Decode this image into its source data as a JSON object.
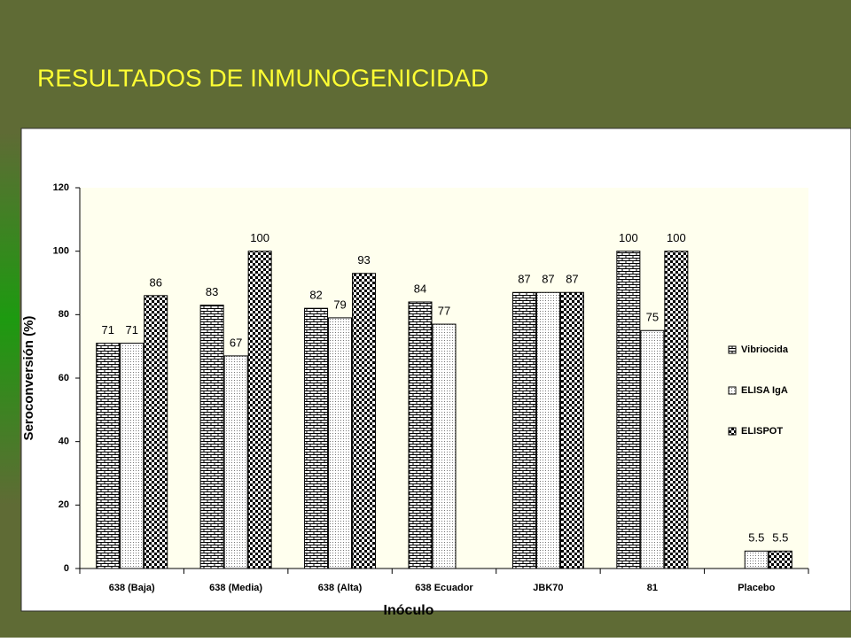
{
  "slide_title": "RESULTADOS DE INMUNOGENICIDAD",
  "chart_data": {
    "type": "bar",
    "categories": [
      "638 (Baja)",
      "638 (Media)",
      "638 (Alta)",
      "638 Ecuador",
      "JBK70",
      "81",
      "Placebo"
    ],
    "series": [
      {
        "name": "Vibriocida",
        "color": "#000000",
        "values": [
          71,
          83,
          82,
          84,
          87,
          100,
          null
        ]
      },
      {
        "name": "ELISA IgA",
        "color": "#000000",
        "values": [
          71,
          67,
          79,
          77,
          87,
          75,
          5.5
        ]
      },
      {
        "name": "ELISPOT",
        "color": "#000000",
        "values": [
          86,
          100,
          93,
          null,
          87,
          100,
          5.5
        ]
      }
    ],
    "ylim": [
      0,
      120
    ],
    "yticks": [
      0,
      20,
      40,
      60,
      80,
      100,
      120
    ],
    "y_label": "Seroconversión (%)",
    "x_label": "Inóculo",
    "legend": "right",
    "grid": false,
    "plot_background": "#ffffee"
  }
}
